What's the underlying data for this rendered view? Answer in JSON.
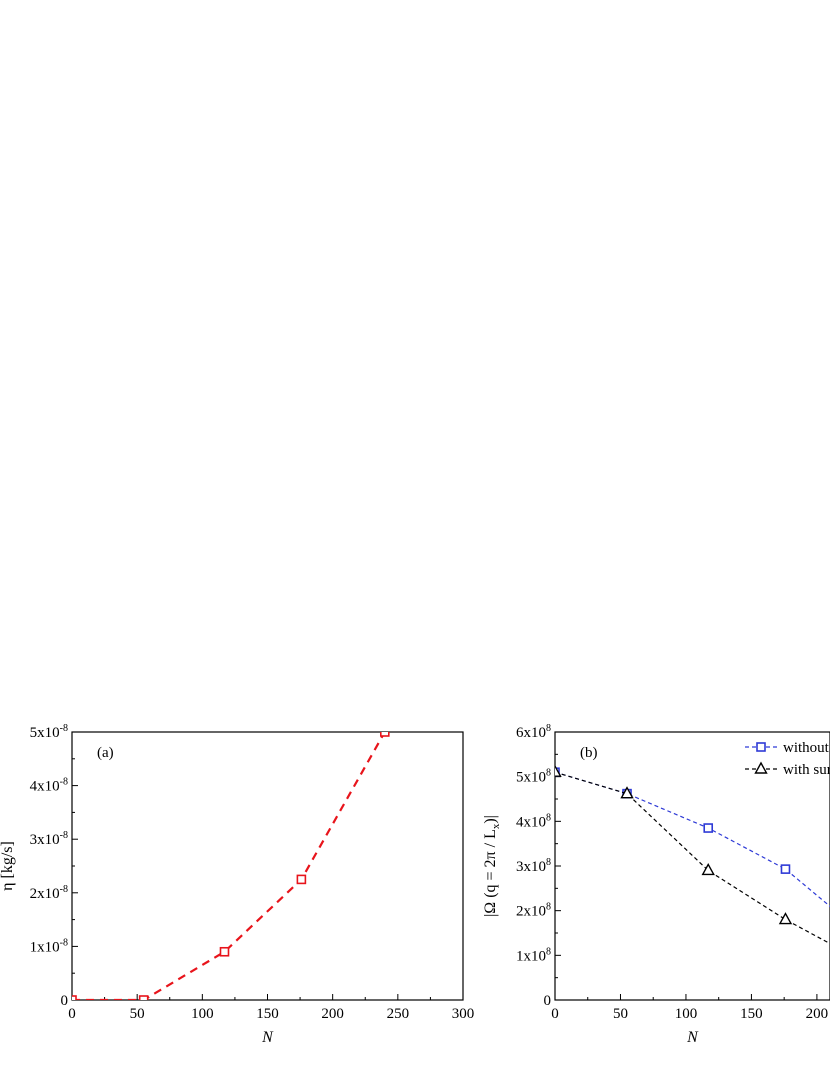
{
  "chart_data": [
    {
      "type": "line",
      "panel_label": "(a)",
      "xlabel": "N",
      "ylabel": "η [kg/s]",
      "xlim": [
        0,
        300
      ],
      "ylim": [
        0,
        5e-08
      ],
      "x_ticks": [
        0,
        50,
        100,
        150,
        200,
        250,
        300
      ],
      "y_ticks": [
        {
          "value": 0,
          "mant": "0",
          "exp": ""
        },
        {
          "value": 1e-08,
          "mant": "1x10",
          "exp": "-8"
        },
        {
          "value": 2e-08,
          "mant": "2x10",
          "exp": "-8"
        },
        {
          "value": 3e-08,
          "mant": "3x10",
          "exp": "-8"
        },
        {
          "value": 4e-08,
          "mant": "4x10",
          "exp": "-8"
        },
        {
          "value": 5e-08,
          "mant": "5x10",
          "exp": "-8"
        }
      ],
      "series": [
        {
          "color": "#e8141b",
          "marker": "square",
          "line": "dashed",
          "points": [
            [
              0,
              0
            ],
            [
              55,
              0
            ],
            [
              117,
              9e-09
            ],
            [
              176,
              2.25e-08
            ],
            [
              240,
              5e-08
            ]
          ]
        }
      ]
    },
    {
      "type": "line",
      "panel_label": "(b)",
      "xlabel": "N",
      "ylabel": "|Ω (q = 2π / L",
      "ylabel_sub": "x",
      "ylabel_end": ")|",
      "xlim": [
        0,
        210
      ],
      "ylim": [
        0,
        600000000.0
      ],
      "x_ticks": [
        0,
        50,
        100,
        150,
        200
      ],
      "y_ticks": [
        {
          "value": 0,
          "mant": "0",
          "exp": ""
        },
        {
          "value": 100000000.0,
          "mant": "1x10",
          "exp": "8"
        },
        {
          "value": 200000000.0,
          "mant": "2x10",
          "exp": "8"
        },
        {
          "value": 300000000.0,
          "mant": "3x10",
          "exp": "8"
        },
        {
          "value": 400000000.0,
          "mant": "4x10",
          "exp": "8"
        },
        {
          "value": 500000000.0,
          "mant": "5x10",
          "exp": "8"
        },
        {
          "value": 600000000.0,
          "mant": "6x10",
          "exp": "8"
        }
      ],
      "legend": "top-right",
      "series": [
        {
          "name": "without",
          "color": "#2e3ad6",
          "marker": "square",
          "line": "dashed",
          "points": [
            [
              0,
              510000000.0
            ],
            [
              55,
              462000000.0
            ],
            [
              117,
              385000000.0
            ],
            [
              176,
              293000000.0
            ],
            [
              214,
              200000000.0
            ]
          ]
        },
        {
          "name": "with sur",
          "color": "#000000",
          "marker": "triangle",
          "line": "dashed",
          "points": [
            [
              0,
              510000000.0
            ],
            [
              55,
              462000000.0
            ],
            [
              117,
              290000000.0
            ],
            [
              176,
              180000000.0
            ],
            [
              214,
              120000000.0
            ]
          ]
        }
      ]
    }
  ]
}
